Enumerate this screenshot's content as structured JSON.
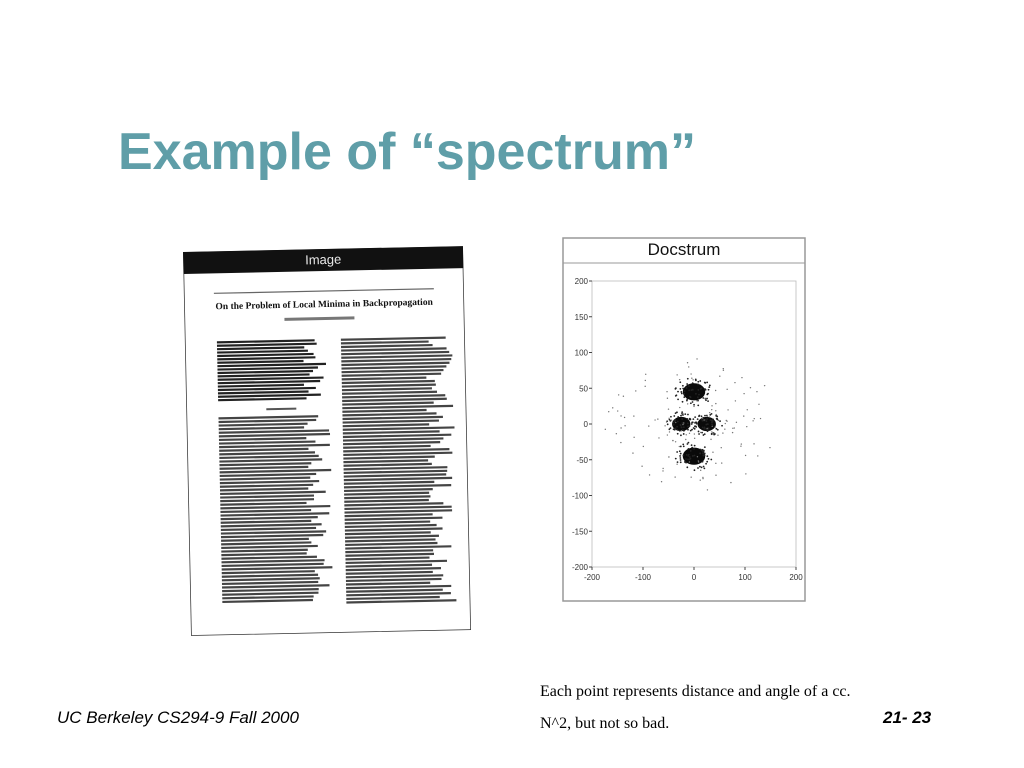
{
  "slide": {
    "title": "Example of “spectrum”"
  },
  "left_figure": {
    "header_label": "Image",
    "paper_title": "On the Problem of Local Minima in Backpropagation"
  },
  "right_figure": {
    "title": "Docstrum"
  },
  "chart_data": {
    "type": "scatter",
    "title": "Docstrum",
    "xlim": [
      -200,
      200
    ],
    "ylim": [
      -200,
      200
    ],
    "x_ticks": [
      -200,
      -100,
      0,
      100,
      200
    ],
    "y_ticks": [
      200,
      150,
      100,
      50,
      0,
      -50,
      -100,
      -150,
      -200
    ],
    "x_tick_labels": [
      "-200",
      "-100",
      "0",
      "100",
      "200"
    ],
    "y_tick_labels": [
      "200",
      "150",
      "100",
      "50",
      "0",
      "-50",
      "-100",
      "-150",
      "-200"
    ],
    "clusters": [
      {
        "x": 0,
        "y": 45,
        "rx": 22,
        "ry": 12
      },
      {
        "x": 0,
        "y": -45,
        "rx": 22,
        "ry": 12
      },
      {
        "x": -25,
        "y": 0,
        "rx": 18,
        "ry": 10
      },
      {
        "x": 25,
        "y": 0,
        "rx": 18,
        "ry": 10
      }
    ],
    "grid": false,
    "xlabel": "",
    "ylabel": ""
  },
  "caption": {
    "line1": "Each point represents distance and angle of a cc.",
    "line2": "N^2, but not so bad."
  },
  "footer": {
    "course": "UC Berkeley CS294-9 Fall 2000",
    "page_number": "21- 23"
  }
}
